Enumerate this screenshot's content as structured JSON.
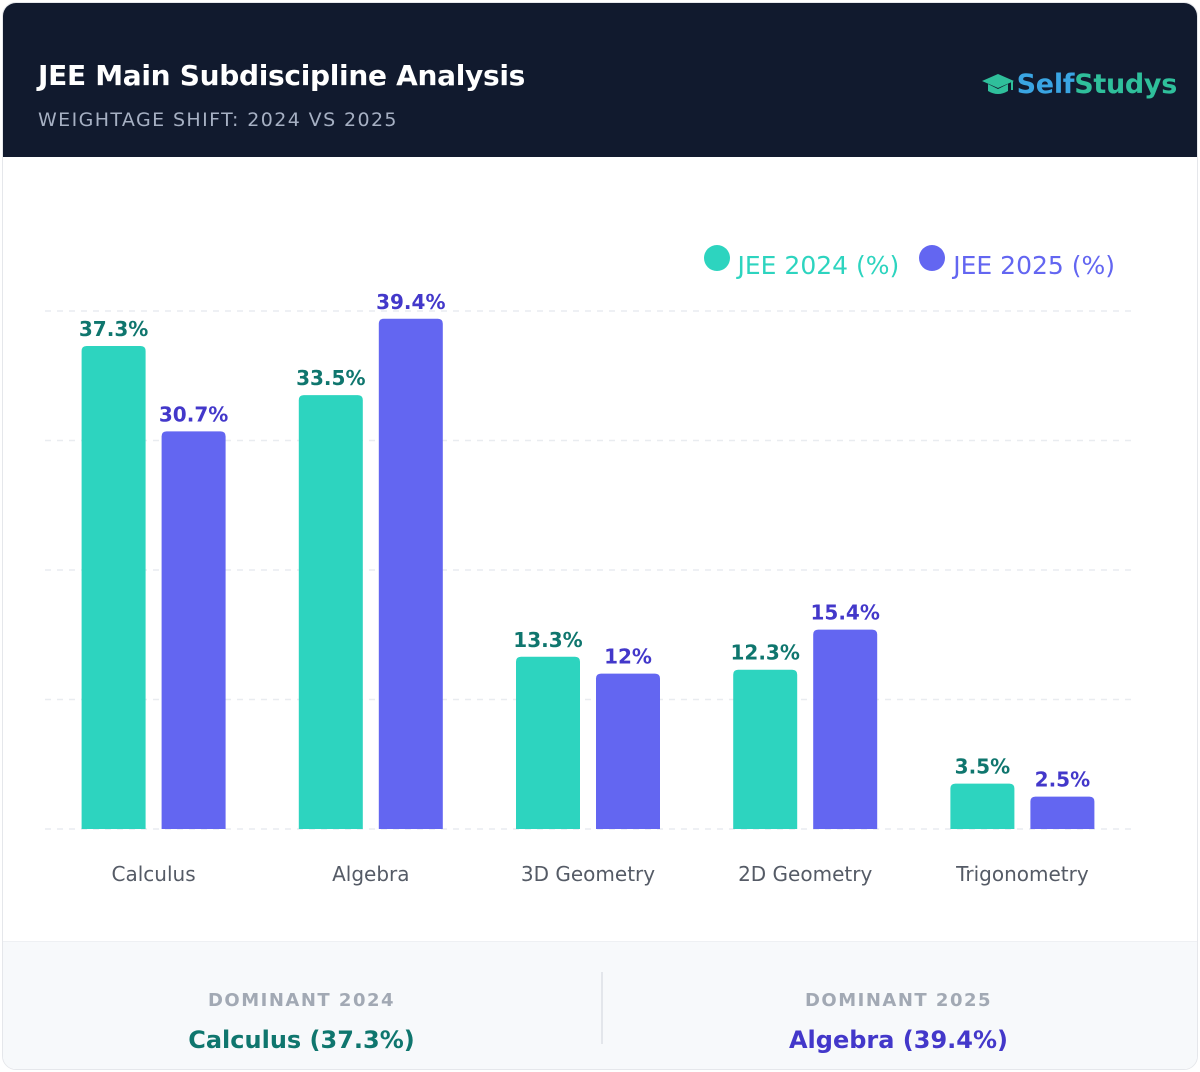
{
  "header": {
    "title": "JEE Main Subdiscipline Analysis",
    "subtitle": "WEIGHTAGE SHIFT: 2024 VS 2025",
    "brand_self": "Self",
    "brand_studys": "Studys",
    "brand_icon": "graduation-cap-icon"
  },
  "colors": {
    "header_bg": "#111a2e",
    "series_2024": "#2dd4bf",
    "series_2025": "#6366f1",
    "label_2024": "#0f766e",
    "label_2025": "#4338ca",
    "grid": "#e9ecf0",
    "axis_text": "#555b66"
  },
  "legend": {
    "item_2024": "JEE 2024 (%)",
    "item_2025": "JEE 2025 (%)"
  },
  "chart_data": {
    "type": "bar",
    "title": "JEE Main Subdiscipline Analysis",
    "subtitle": "WEIGHTAGE SHIFT: 2024 VS 2025",
    "categories": [
      "Calculus",
      "Algebra",
      "3D Geometry",
      "2D Geometry",
      "Trigonometry"
    ],
    "series": [
      {
        "name": "JEE 2024 (%)",
        "values": [
          37.3,
          33.5,
          13.3,
          12.3,
          3.5
        ],
        "labels": [
          "37.3%",
          "33.5%",
          "13.3%",
          "12.3%",
          "3.5%"
        ]
      },
      {
        "name": "JEE 2025 (%)",
        "values": [
          30.7,
          39.4,
          12,
          15.4,
          2.5
        ],
        "labels": [
          "30.7%",
          "39.4%",
          "12%",
          "15.4%",
          "2.5%"
        ]
      }
    ],
    "xlabel": "",
    "ylabel": "",
    "ylim": [
      0,
      40
    ],
    "grid": true,
    "legend_position": "top-right"
  },
  "summary": {
    "dominant_2024_label": "DOMINANT 2024",
    "dominant_2024_value": "Calculus (37.3%)",
    "dominant_2025_label": "DOMINANT 2025",
    "dominant_2025_value": "Algebra (39.4%)"
  }
}
